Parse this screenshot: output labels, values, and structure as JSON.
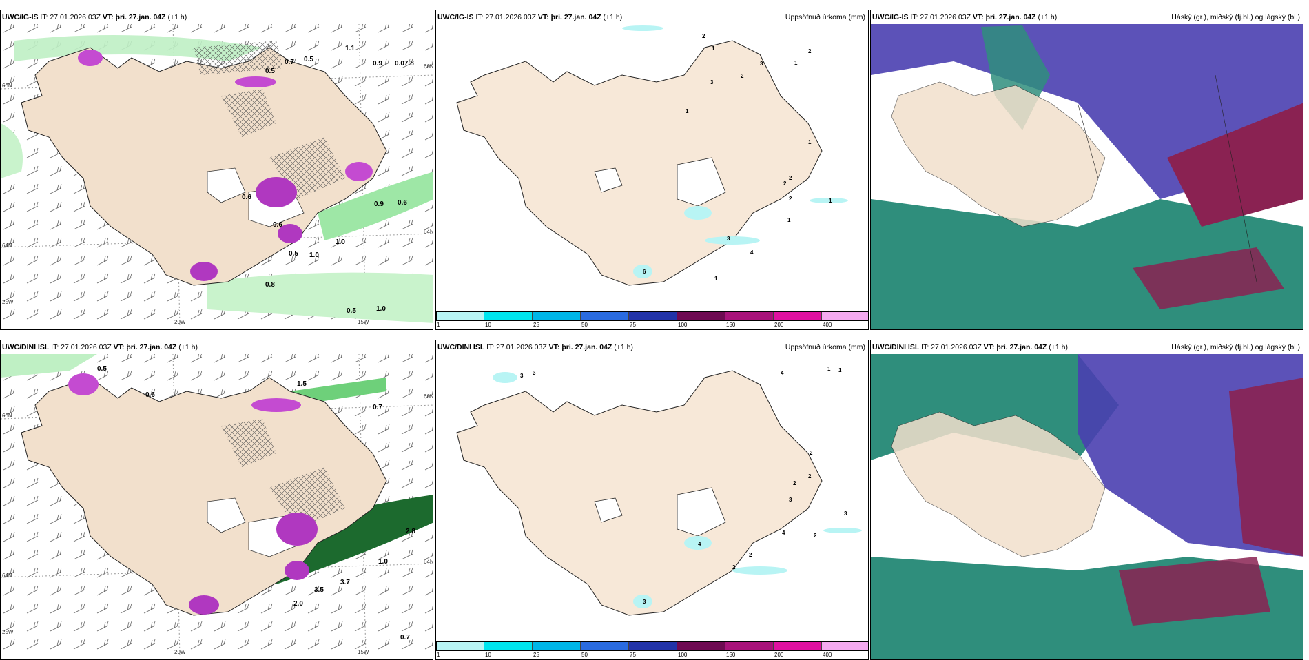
{
  "rows": [
    {
      "model": "UWC/IG-IS",
      "it_label": "IT: 27.01.2026 03Z",
      "vt_label": "VT: þri. 27.jan. 04Z",
      "lead": "(+1 h)",
      "precip_title": "Uppsöfnuð úrkoma (mm)",
      "cloud_title": "Háský (gr.), miðský (fj.bl.) og lágský (bl.)",
      "lon_labels": [
        "20W",
        "15W"
      ],
      "lat_labels": [
        "66N",
        "64N",
        "25W",
        "66N",
        "64N"
      ],
      "wind_values": [
        "0.5",
        "0.7",
        "0.5",
        "1.1",
        "0.9",
        "0.07.8",
        "0.6",
        "0.6",
        "0.9",
        "0.6",
        "1.0",
        "0.5",
        "1.0",
        "0.8",
        "0.5",
        "1.0"
      ],
      "precip_values": [
        "2",
        "2",
        "3",
        "2",
        "1",
        "3",
        "1",
        "1",
        "2",
        "2",
        "2",
        "1",
        "1",
        "4",
        "3",
        "1",
        "6",
        "1"
      ]
    },
    {
      "model": "UWC/DINI ISL",
      "it_label": "IT: 27.01.2026 03Z",
      "vt_label": "VT: þri. 27.jan. 04Z",
      "lead": "(+1 h)",
      "precip_title": "Uppsöfnuð úrkoma (mm)",
      "cloud_title": "Háský (gr.), miðský (fj.bl.) og lágský (bl.)",
      "lon_labels": [
        "20W",
        "15W"
      ],
      "lat_labels": [
        "66N",
        "64N",
        "25W",
        "66N",
        "64N"
      ],
      "wind_values": [
        "0.5",
        "0.6",
        "1.5",
        "0.7",
        "2.8",
        "1.0",
        "3.7",
        "3.5",
        "2.0",
        "0.7"
      ],
      "precip_values": [
        "3",
        "3",
        "4",
        "1",
        "1",
        "2",
        "2",
        "2",
        "3",
        "3",
        "4",
        "2",
        "2",
        "2",
        "3",
        "4"
      ]
    }
  ],
  "colorbar": {
    "ticks": [
      "1",
      "10",
      "25",
      "50",
      "75",
      "100",
      "150",
      "200",
      "400"
    ],
    "colors": [
      "#b8f4f4",
      "#00e5ee",
      "#00b6e8",
      "#2a6be0",
      "#2233a8",
      "#6e0a52",
      "#a8127a",
      "#e010a0",
      "#f4aaf0"
    ]
  },
  "colors": {
    "land": "#f7e8d8",
    "cloud_high": "#4a3fb0",
    "cloud_mid": "#2f8e7c",
    "cloud_low": "#8a2252",
    "green_precip": "#bff0c4",
    "magenta": "#c44bd1"
  }
}
